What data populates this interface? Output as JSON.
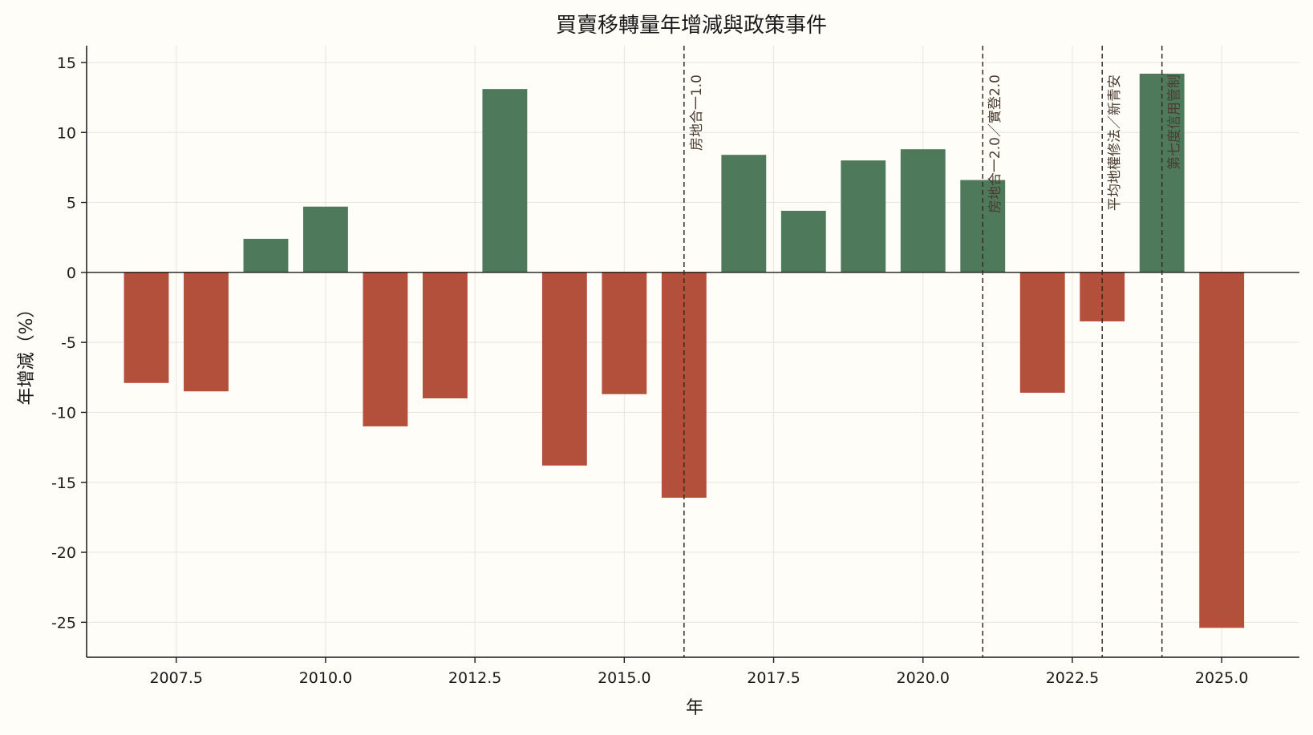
{
  "chart_data": {
    "type": "bar",
    "title": "買賣移轉量年增減與政策事件",
    "xlabel": "年",
    "ylabel": "年增減（%）",
    "x": [
      2007,
      2008,
      2009,
      2010,
      2011,
      2012,
      2013,
      2014,
      2015,
      2016,
      2017,
      2018,
      2019,
      2020,
      2021,
      2022,
      2023,
      2024,
      2025
    ],
    "values": [
      -7.9,
      -8.5,
      2.4,
      4.7,
      -11.0,
      -9.0,
      13.1,
      -13.8,
      -8.7,
      -16.1,
      8.4,
      4.4,
      8.0,
      8.8,
      6.6,
      -8.6,
      -3.5,
      14.2,
      -25.4
    ],
    "xlim": [
      2006.0,
      2026.3
    ],
    "ylim": [
      -27.5,
      16.2
    ],
    "xticks": [
      2007.5,
      2010.0,
      2012.5,
      2015.0,
      2017.5,
      2020.0,
      2022.5,
      2025.0
    ],
    "xtick_labels": [
      "2007.5",
      "2010.0",
      "2012.5",
      "2015.0",
      "2017.5",
      "2020.0",
      "2022.5",
      "2025.0"
    ],
    "yticks": [
      15,
      10,
      5,
      0,
      -5,
      -10,
      -15,
      -20,
      -25
    ],
    "ytick_labels": [
      "15",
      "10",
      "5",
      "0",
      "-5",
      "-10",
      "-15",
      "-20",
      "-25"
    ],
    "bar_width": 0.75,
    "grid": true,
    "colors": {
      "positive": "#4e7a5b",
      "negative": "#b3503c",
      "event_line": "#3a2a22"
    },
    "events": [
      {
        "x": 2016,
        "label": "房地合一1.0"
      },
      {
        "x": 2021,
        "label": "房地合一2.0／實登2.0"
      },
      {
        "x": 2023,
        "label": "平均地權修法／新青安"
      },
      {
        "x": 2024,
        "label": "第七度信用管制"
      }
    ]
  }
}
